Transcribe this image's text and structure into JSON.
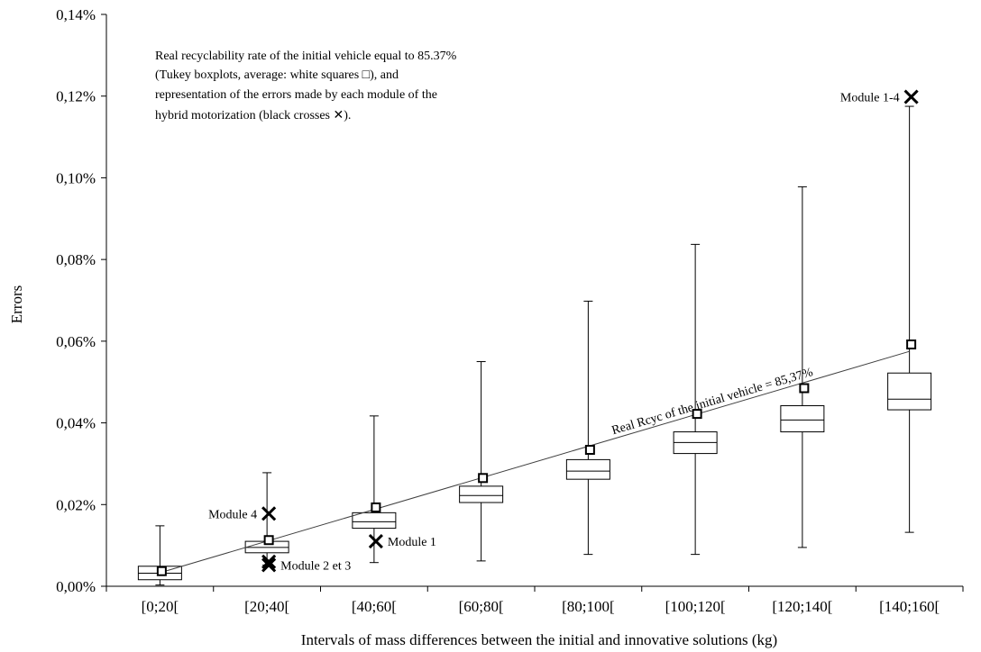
{
  "chart_data": {
    "type": "boxplot",
    "xlabel": "Intervals of mass differences between the initial and innovative solutions (kg)",
    "ylabel": "Errors",
    "ylim": [
      0,
      0.14
    ],
    "y_ticks": [
      "0,00%",
      "0,02%",
      "0,04%",
      "0,06%",
      "0,08%",
      "0,10%",
      "0,12%",
      "0,14%"
    ],
    "y_tick_values": [
      0,
      0.02,
      0.04,
      0.06,
      0.08,
      0.1,
      0.12,
      0.14
    ],
    "grid": false,
    "legend": "none",
    "note_lines": [
      "Real recyclability rate of the initial vehicle equal to 85.37%",
      "(Tukey boxplots, average: white squares □), and",
      "representation of the errors made by each module of the",
      "hybrid motorization (black crosses ✕)."
    ],
    "categories": [
      "[0;20[",
      "[20;40[",
      "[40;60[",
      "[60;80[",
      "[80;100[",
      "[100;120[",
      "[120;140[",
      "[140;160["
    ],
    "boxes": [
      {
        "min": 0.0003,
        "q1": 0.0016,
        "median": 0.0032,
        "q3": 0.0049,
        "max": 0.0148,
        "mean": 0.0037
      },
      {
        "min": 0.0052,
        "q1": 0.0082,
        "median": 0.0095,
        "q3": 0.011,
        "max": 0.0278,
        "mean": 0.0113
      },
      {
        "min": 0.0058,
        "q1": 0.0142,
        "median": 0.0158,
        "q3": 0.018,
        "max": 0.0417,
        "mean": 0.0193
      },
      {
        "min": 0.0062,
        "q1": 0.0205,
        "median": 0.0222,
        "q3": 0.0245,
        "max": 0.055,
        "mean": 0.0265
      },
      {
        "min": 0.0078,
        "q1": 0.0262,
        "median": 0.0282,
        "q3": 0.031,
        "max": 0.0698,
        "mean": 0.0334
      },
      {
        "min": 0.0078,
        "q1": 0.0325,
        "median": 0.0352,
        "q3": 0.0378,
        "max": 0.0837,
        "mean": 0.0422
      },
      {
        "min": 0.0095,
        "q1": 0.0378,
        "median": 0.0407,
        "q3": 0.0442,
        "max": 0.0978,
        "mean": 0.0485
      },
      {
        "min": 0.0132,
        "q1": 0.0432,
        "median": 0.0458,
        "q3": 0.0522,
        "max": 0.1175,
        "mean": 0.0592
      }
    ],
    "trend_line": {
      "label": "Real Rcyc of the initial vehicle = 85,37%",
      "start": {
        "category": 0,
        "value": 0.0033
      },
      "end": {
        "category": 7,
        "value": 0.0575
      }
    },
    "crosses": [
      {
        "category": 1,
        "value": 0.0178,
        "label": "Module 4",
        "label_side": "left"
      },
      {
        "category": 1,
        "value": 0.006,
        "label": "",
        "label_side": "none"
      },
      {
        "category": 1,
        "value": 0.0052,
        "label": "Module 2 et 3",
        "label_side": "right"
      },
      {
        "category": 2,
        "value": 0.011,
        "label": "Module 1",
        "label_side": "right"
      },
      {
        "category": 7,
        "value": 0.1198,
        "label": "Module 1-4",
        "label_side": "left"
      }
    ]
  }
}
